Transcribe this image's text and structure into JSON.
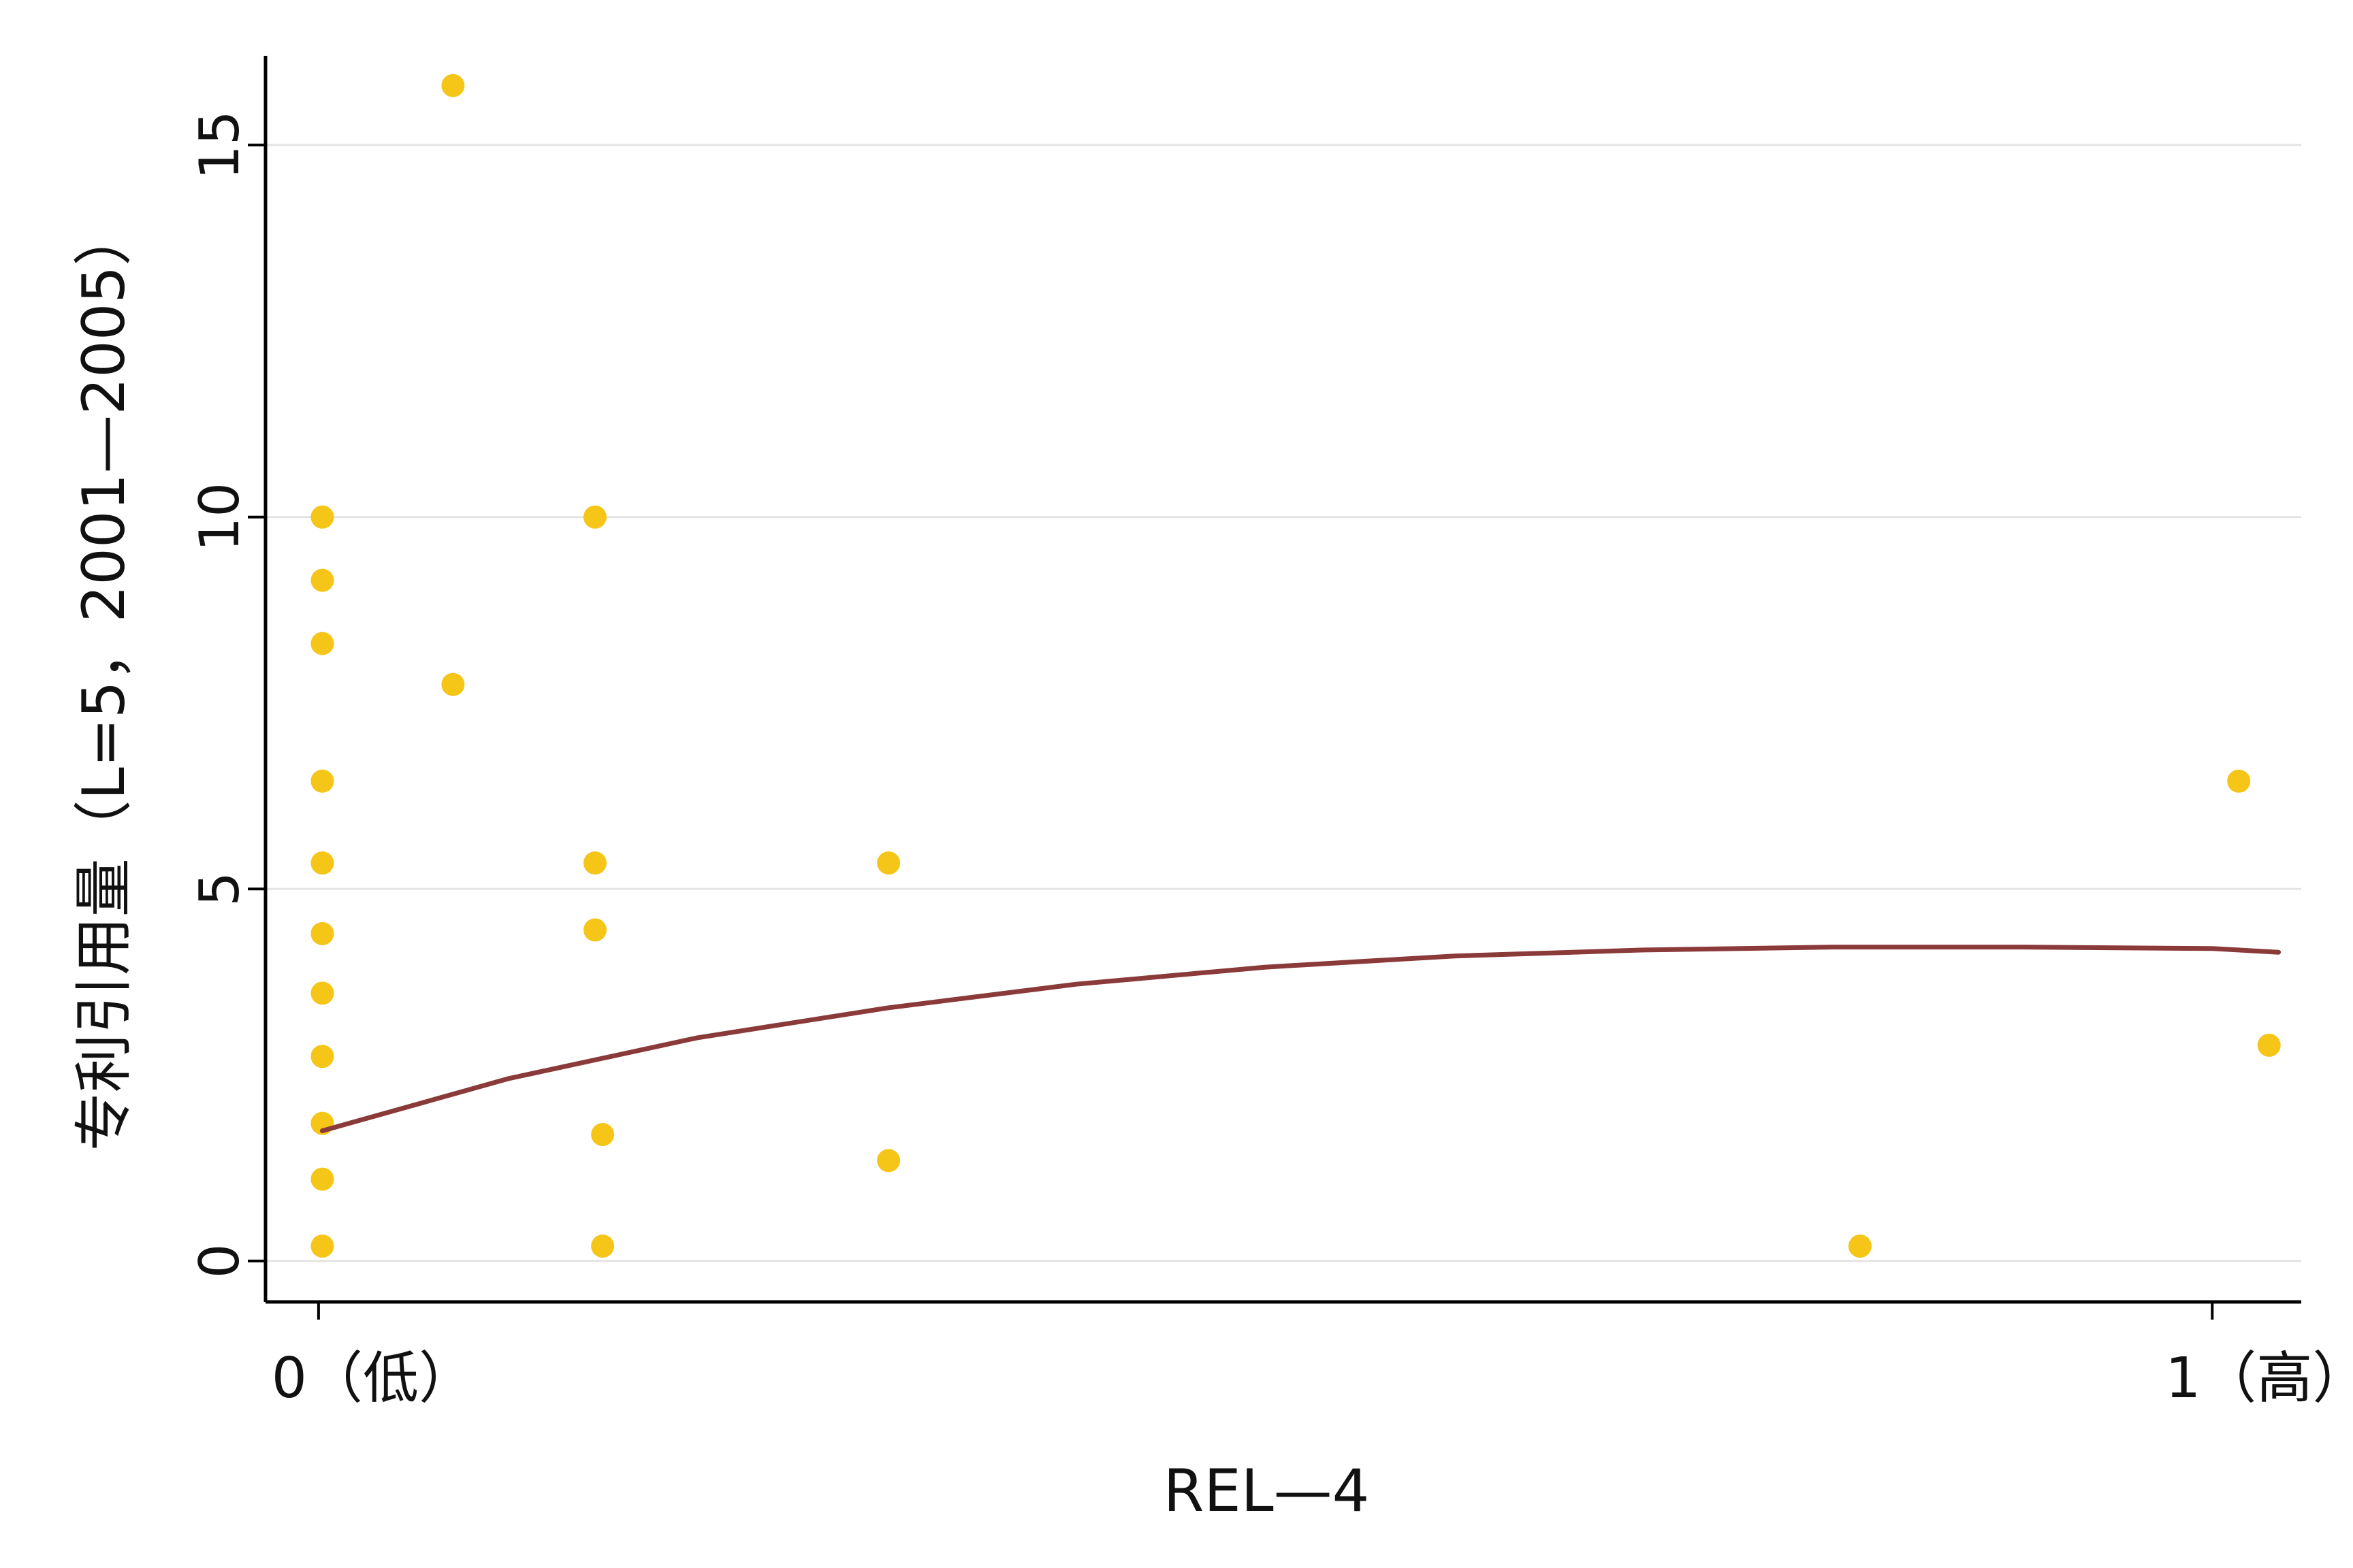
{
  "chart_data": {
    "type": "scatter",
    "xlabel": "REL—4",
    "ylabel": "专利引用量（L=5，2001—2005）",
    "xlim": [
      -0.028,
      1.047
    ],
    "ylim": [
      -0.55,
      16.2
    ],
    "x_ticks": [
      {
        "value": 0,
        "label": "0（低）"
      },
      {
        "value": 1,
        "label": "1（高）"
      }
    ],
    "y_ticks": [
      {
        "value": 0,
        "label": "0"
      },
      {
        "value": 5,
        "label": "5"
      },
      {
        "value": 10,
        "label": "10"
      },
      {
        "value": 15,
        "label": "15"
      }
    ],
    "grid": "horizontal",
    "series": [
      {
        "kind": "points",
        "color": "#F5C518",
        "points": [
          {
            "x": 0.002,
            "y": 0.2
          },
          {
            "x": 0.002,
            "y": 1.1
          },
          {
            "x": 0.002,
            "y": 1.85
          },
          {
            "x": 0.002,
            "y": 2.75
          },
          {
            "x": 0.002,
            "y": 3.6
          },
          {
            "x": 0.002,
            "y": 4.4
          },
          {
            "x": 0.002,
            "y": 5.35
          },
          {
            "x": 0.002,
            "y": 6.45
          },
          {
            "x": 0.002,
            "y": 8.3
          },
          {
            "x": 0.002,
            "y": 9.15
          },
          {
            "x": 0.002,
            "y": 10.0
          },
          {
            "x": 0.071,
            "y": 7.75
          },
          {
            "x": 0.071,
            "y": 15.8
          },
          {
            "x": 0.146,
            "y": 10.0
          },
          {
            "x": 0.146,
            "y": 5.35
          },
          {
            "x": 0.146,
            "y": 4.45
          },
          {
            "x": 0.15,
            "y": 1.7
          },
          {
            "x": 0.15,
            "y": 0.2
          },
          {
            "x": 0.301,
            "y": 5.35
          },
          {
            "x": 0.301,
            "y": 1.35
          },
          {
            "x": 0.814,
            "y": 0.2
          },
          {
            "x": 1.014,
            "y": 6.45
          },
          {
            "x": 1.03,
            "y": 2.9
          }
        ]
      },
      {
        "kind": "fit-line",
        "color": "#8B3A3A",
        "points": [
          {
            "x": 0.002,
            "y": 1.75
          },
          {
            "x": 0.1,
            "y": 2.45
          },
          {
            "x": 0.2,
            "y": 3.0
          },
          {
            "x": 0.3,
            "y": 3.4
          },
          {
            "x": 0.4,
            "y": 3.72
          },
          {
            "x": 0.5,
            "y": 3.95
          },
          {
            "x": 0.6,
            "y": 4.1
          },
          {
            "x": 0.7,
            "y": 4.18
          },
          {
            "x": 0.8,
            "y": 4.22
          },
          {
            "x": 0.9,
            "y": 4.22
          },
          {
            "x": 1.0,
            "y": 4.2
          },
          {
            "x": 1.035,
            "y": 4.15
          }
        ]
      }
    ]
  }
}
